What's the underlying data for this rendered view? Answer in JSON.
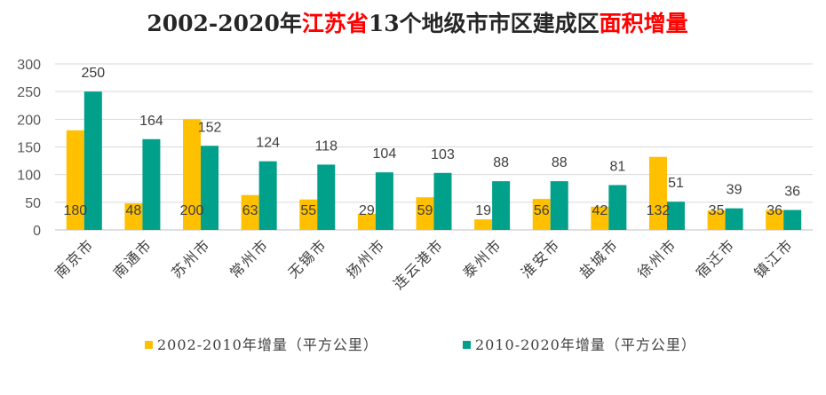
{
  "chart_data": {
    "type": "bar",
    "title_segments": [
      {
        "text": "2002-2020年",
        "color": "#262626"
      },
      {
        "text": "江苏省",
        "color": "#FF0000"
      },
      {
        "text": "13个地级市市区建成区",
        "color": "#262626"
      },
      {
        "text": "面积增量",
        "color": "#FF0000"
      }
    ],
    "categories": [
      "南京市",
      "南通市",
      "苏州市",
      "常州市",
      "无锡市",
      "扬州市",
      "连云港市",
      "泰州市",
      "淮安市",
      "盐城市",
      "徐州市",
      "宿迁市",
      "镇江市"
    ],
    "series": [
      {
        "name": "2002-2010年增量（平方公里）",
        "color": "#FFC000",
        "label_position": "inside-base",
        "values": [
          180,
          48,
          200,
          63,
          55,
          29,
          59,
          19,
          56,
          42,
          132,
          35,
          36
        ]
      },
      {
        "name": "2010-2020年增量（平方公里）",
        "color": "#00A08A",
        "label_position": "outside-end",
        "values": [
          250,
          164,
          152,
          124,
          118,
          104,
          103,
          88,
          88,
          81,
          51,
          39,
          36
        ]
      }
    ],
    "xlabel": "",
    "ylabel": "",
    "ylim": [
      0,
      300
    ],
    "yticks": [
      0,
      50,
      100,
      150,
      200,
      250,
      300
    ],
    "grid": true,
    "legend": "bottom"
  }
}
